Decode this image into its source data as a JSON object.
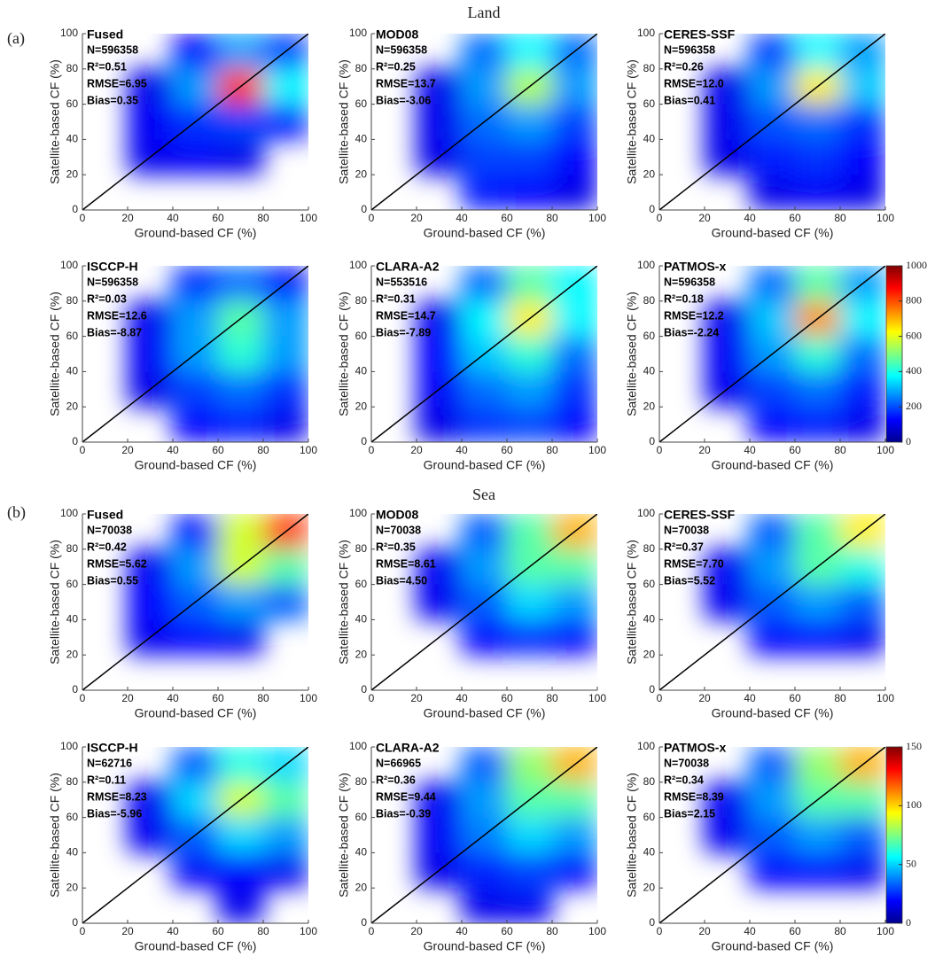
{
  "sections": [
    {
      "label": "(a)",
      "title": "Land",
      "colorbar": {
        "lim": [
          0,
          1000
        ],
        "ticks": [
          0,
          200,
          400,
          600,
          800,
          1000
        ]
      }
    },
    {
      "label": "(b)",
      "title": "Sea",
      "colorbar": {
        "lim": [
          0,
          150
        ],
        "ticks": [
          0,
          50,
          100,
          150
        ]
      }
    }
  ],
  "chart_data": [
    {
      "type": "density-scatter",
      "title": "Fused",
      "annotations": [
        "N=596358",
        "R²=0.51",
        "RMSE=6.95",
        "Bias=0.35"
      ],
      "xlabel": "Ground-based CF (%)",
      "ylabel": "Satellite-based CF (%)",
      "xlim": [
        0,
        100
      ],
      "ylim": [
        0,
        100
      ],
      "xticks": [
        0,
        20,
        40,
        60,
        80,
        100
      ],
      "yticks": [
        0,
        20,
        40,
        60,
        80,
        100
      ],
      "bins": [
        0,
        20,
        40,
        60,
        80,
        100
      ],
      "counts": [
        [
          0,
          0,
          0,
          0,
          0
        ],
        [
          0,
          10,
          20,
          5,
          0
        ],
        [
          0,
          20,
          80,
          100,
          50
        ],
        [
          0,
          5,
          200,
          800,
          300
        ],
        [
          0,
          0,
          30,
          200,
          100
        ]
      ]
    },
    {
      "type": "density-scatter",
      "title": "MOD08",
      "annotations": [
        "N=596358",
        "R²=0.25",
        "RMSE=13.7",
        "Bias=-3.06"
      ],
      "xlabel": "Ground-based CF (%)",
      "ylabel": "Satellite-based CF (%)",
      "xlim": [
        0,
        100
      ],
      "ylim": [
        0,
        100
      ],
      "xticks": [
        0,
        20,
        40,
        60,
        80,
        100
      ],
      "yticks": [
        0,
        20,
        40,
        60,
        80,
        100
      ],
      "bins": [
        0,
        20,
        40,
        60,
        80,
        100
      ],
      "counts": [
        [
          0,
          0,
          50,
          30,
          5
        ],
        [
          0,
          5,
          100,
          100,
          30
        ],
        [
          0,
          10,
          150,
          200,
          100
        ],
        [
          0,
          5,
          200,
          500,
          200
        ],
        [
          0,
          0,
          150,
          300,
          150
        ]
      ]
    },
    {
      "type": "density-scatter",
      "title": "CERES-SSF",
      "annotations": [
        "N=596358",
        "R²=0.26",
        "RMSE=12.0",
        "Bias=0.41"
      ],
      "xlabel": "Ground-based CF (%)",
      "ylabel": "Satellite-based CF (%)",
      "xlim": [
        0,
        100
      ],
      "ylim": [
        0,
        100
      ],
      "xticks": [
        0,
        20,
        40,
        60,
        80,
        100
      ],
      "yticks": [
        0,
        20,
        40,
        60,
        80,
        100
      ],
      "bins": [
        0,
        20,
        40,
        60,
        80,
        100
      ],
      "counts": [
        [
          0,
          0,
          5,
          20,
          5
        ],
        [
          0,
          5,
          60,
          80,
          30
        ],
        [
          0,
          10,
          120,
          150,
          80
        ],
        [
          0,
          5,
          200,
          600,
          250
        ],
        [
          0,
          0,
          100,
          300,
          200
        ]
      ]
    },
    {
      "type": "density-scatter",
      "title": "ISCCP-H",
      "annotations": [
        "N=596358",
        "R²=0.03",
        "RMSE=12.6",
        "Bias=-8.87"
      ],
      "xlabel": "Ground-based CF (%)",
      "ylabel": "Satellite-based CF (%)",
      "xlim": [
        0,
        100
      ],
      "ylim": [
        0,
        100
      ],
      "xticks": [
        0,
        20,
        40,
        60,
        80,
        100
      ],
      "yticks": [
        0,
        20,
        40,
        60,
        80,
        100
      ],
      "bins": [
        0,
        20,
        40,
        60,
        80,
        100
      ],
      "counts": [
        [
          0,
          0,
          30,
          60,
          10
        ],
        [
          0,
          5,
          100,
          150,
          80
        ],
        [
          0,
          20,
          200,
          350,
          200
        ],
        [
          0,
          10,
          200,
          400,
          200
        ],
        [
          0,
          0,
          80,
          150,
          50
        ]
      ]
    },
    {
      "type": "density-scatter",
      "title": "CLARA-A2",
      "annotations": [
        "N=553516",
        "R²=0.31",
        "RMSE=14.7",
        "Bias=-7.89"
      ],
      "xlabel": "Ground-based CF (%)",
      "ylabel": "Satellite-based CF (%)",
      "xlim": [
        0,
        100
      ],
      "ylim": [
        0,
        100
      ],
      "xticks": [
        0,
        20,
        40,
        60,
        80,
        100
      ],
      "yticks": [
        0,
        20,
        40,
        60,
        80,
        100
      ],
      "bins": [
        0,
        20,
        40,
        60,
        80,
        100
      ],
      "counts": [
        [
          0,
          5,
          80,
          100,
          30
        ],
        [
          0,
          20,
          150,
          200,
          80
        ],
        [
          0,
          30,
          250,
          350,
          150
        ],
        [
          0,
          10,
          300,
          600,
          300
        ],
        [
          0,
          0,
          150,
          400,
          300
        ]
      ]
    },
    {
      "type": "density-scatter",
      "title": "PATMOS-x",
      "annotations": [
        "N=596358",
        "R²=0.18",
        "RMSE=12.2",
        "Bias=-2.24"
      ],
      "xlabel": "Ground-based CF (%)",
      "ylabel": "Satellite-based CF (%)",
      "xlim": [
        0,
        100
      ],
      "ylim": [
        0,
        100
      ],
      "xticks": [
        0,
        20,
        40,
        60,
        80,
        100
      ],
      "yticks": [
        0,
        20,
        40,
        60,
        80,
        100
      ],
      "bins": [
        0,
        20,
        40,
        60,
        80,
        100
      ],
      "counts": [
        [
          0,
          0,
          30,
          50,
          10
        ],
        [
          0,
          10,
          100,
          150,
          60
        ],
        [
          0,
          20,
          200,
          350,
          150
        ],
        [
          0,
          10,
          250,
          700,
          300
        ],
        [
          0,
          0,
          150,
          400,
          200
        ]
      ]
    },
    {
      "type": "density-scatter",
      "title": "Fused",
      "annotations": [
        "N=70038",
        "R²=0.42",
        "RMSE=5.62",
        "Bias=0.55"
      ],
      "xlabel": "Ground-based CF (%)",
      "ylabel": "Satellite-based CF (%)",
      "xlim": [
        0,
        100
      ],
      "ylim": [
        0,
        100
      ],
      "xticks": [
        0,
        20,
        40,
        60,
        80,
        100
      ],
      "yticks": [
        0,
        20,
        40,
        60,
        80,
        100
      ],
      "bins": [
        0,
        20,
        40,
        60,
        80,
        100
      ],
      "counts": [
        [
          0,
          0,
          0,
          0,
          0
        ],
        [
          0,
          2,
          5,
          2,
          0
        ],
        [
          0,
          5,
          20,
          30,
          20
        ],
        [
          0,
          2,
          30,
          80,
          60
        ],
        [
          0,
          0,
          10,
          80,
          120
        ]
      ]
    },
    {
      "type": "density-scatter",
      "title": "MOD08",
      "annotations": [
        "N=70038",
        "R²=0.35",
        "RMSE=8.61",
        "Bias=4.50"
      ],
      "xlabel": "Ground-based CF (%)",
      "ylabel": "Satellite-based CF (%)",
      "xlim": [
        0,
        100
      ],
      "ylim": [
        0,
        100
      ],
      "xticks": [
        0,
        20,
        40,
        60,
        80,
        100
      ],
      "yticks": [
        0,
        20,
        40,
        60,
        80,
        100
      ],
      "bins": [
        0,
        20,
        40,
        60,
        80,
        100
      ],
      "counts": [
        [
          0,
          0,
          0,
          0,
          0
        ],
        [
          0,
          0,
          5,
          10,
          5
        ],
        [
          0,
          2,
          20,
          40,
          30
        ],
        [
          0,
          2,
          30,
          60,
          60
        ],
        [
          0,
          0,
          20,
          60,
          100
        ]
      ]
    },
    {
      "type": "density-scatter",
      "title": "CERES-SSF",
      "annotations": [
        "N=70038",
        "R²=0.37",
        "RMSE=7.70",
        "Bias=5.52"
      ],
      "xlabel": "Ground-based CF (%)",
      "ylabel": "Satellite-based CF (%)",
      "xlim": [
        0,
        100
      ],
      "ylim": [
        0,
        100
      ],
      "xticks": [
        0,
        20,
        40,
        60,
        80,
        100
      ],
      "yticks": [
        0,
        20,
        40,
        60,
        80,
        100
      ],
      "bins": [
        0,
        20,
        40,
        60,
        80,
        100
      ],
      "counts": [
        [
          0,
          0,
          0,
          0,
          0
        ],
        [
          0,
          0,
          5,
          5,
          2
        ],
        [
          0,
          2,
          20,
          30,
          20
        ],
        [
          0,
          2,
          30,
          60,
          50
        ],
        [
          0,
          0,
          20,
          60,
          90
        ]
      ]
    },
    {
      "type": "density-scatter",
      "title": "ISCCP-H",
      "annotations": [
        "N=62716",
        "R²=0.11",
        "RMSE=8.23",
        "Bias=-5.96"
      ],
      "xlabel": "Ground-based CF (%)",
      "ylabel": "Satellite-based CF (%)",
      "xlim": [
        0,
        100
      ],
      "ylim": [
        0,
        100
      ],
      "xticks": [
        0,
        20,
        40,
        60,
        80,
        100
      ],
      "yticks": [
        0,
        20,
        40,
        60,
        80,
        100
      ],
      "bins": [
        0,
        20,
        40,
        60,
        80,
        100
      ],
      "counts": [
        [
          0,
          0,
          0,
          1,
          0
        ],
        [
          0,
          0,
          3,
          5,
          2
        ],
        [
          0,
          2,
          20,
          40,
          30
        ],
        [
          0,
          2,
          40,
          80,
          60
        ],
        [
          0,
          0,
          20,
          50,
          40
        ]
      ]
    },
    {
      "type": "density-scatter",
      "title": "CLARA-A2",
      "annotations": [
        "N=66965",
        "R²=0.36",
        "RMSE=9.44",
        "Bias=-0.39"
      ],
      "xlabel": "Ground-based CF (%)",
      "ylabel": "Satellite-based CF (%)",
      "xlim": [
        0,
        100
      ],
      "ylim": [
        0,
        100
      ],
      "xticks": [
        0,
        20,
        40,
        60,
        80,
        100
      ],
      "yticks": [
        0,
        20,
        40,
        60,
        80,
        100
      ],
      "bins": [
        0,
        20,
        40,
        60,
        80,
        100
      ],
      "counts": [
        [
          0,
          0,
          1,
          2,
          0
        ],
        [
          0,
          1,
          10,
          15,
          5
        ],
        [
          0,
          3,
          25,
          40,
          30
        ],
        [
          0,
          2,
          30,
          60,
          60
        ],
        [
          0,
          0,
          20,
          70,
          100
        ]
      ]
    },
    {
      "type": "density-scatter",
      "title": "PATMOS-x",
      "annotations": [
        "N=70038",
        "R²=0.34",
        "RMSE=8.39",
        "Bias=2.15"
      ],
      "xlabel": "Ground-based CF (%)",
      "ylabel": "Satellite-based CF (%)",
      "xlim": [
        0,
        100
      ],
      "ylim": [
        0,
        100
      ],
      "xticks": [
        0,
        20,
        40,
        60,
        80,
        100
      ],
      "yticks": [
        0,
        20,
        40,
        60,
        80,
        100
      ],
      "bins": [
        0,
        20,
        40,
        60,
        80,
        100
      ],
      "counts": [
        [
          0,
          0,
          0,
          0,
          0
        ],
        [
          0,
          0,
          5,
          5,
          2
        ],
        [
          0,
          2,
          20,
          30,
          20
        ],
        [
          0,
          2,
          30,
          60,
          60
        ],
        [
          0,
          0,
          20,
          70,
          100
        ]
      ]
    }
  ]
}
